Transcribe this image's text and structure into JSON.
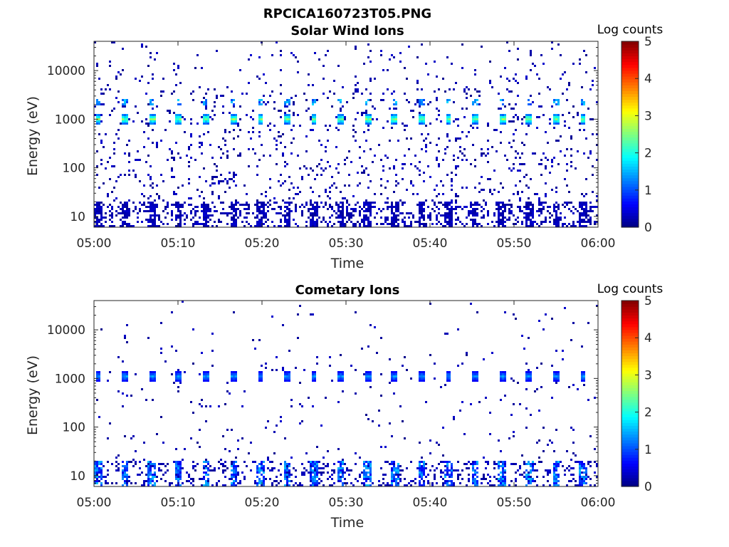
{
  "figure_title": "RPCICA160723T05.PNG",
  "chart_data": [
    {
      "type": "heatmap",
      "title": "Solar Wind Ions",
      "xlabel": "Time",
      "ylabel": "Energy (eV)",
      "x_tick_labels": [
        "05:00",
        "05:10",
        "05:20",
        "05:30",
        "05:40",
        "05:50",
        "06:00"
      ],
      "x_range_minutes": [
        0,
        60
      ],
      "y_scale": "log",
      "y_range_eV": [
        6,
        40000
      ],
      "y_ticks": [
        10,
        100,
        1000,
        10000
      ],
      "y_tick_labels": [
        "10",
        "100",
        "1000",
        "10000"
      ],
      "colorbar_title": "Log counts",
      "colorbar_range": [
        0,
        5
      ],
      "colorbar_tick_labels": [
        "0",
        "1",
        "2",
        "3",
        "4",
        "5"
      ],
      "colormap": "jet",
      "peak_energy_eV": 1000,
      "secondary_peak_eV": 2200,
      "peak_log_counts": 2.8,
      "sweep_times_min": [
        0.5,
        3.7,
        6.9,
        10.1,
        13.3,
        16.6,
        19.8,
        23.0,
        26.2,
        29.4,
        32.6,
        35.8,
        39.0,
        42.2,
        45.4,
        48.6,
        51.8,
        55.0,
        58.2
      ],
      "background_density": 0.07,
      "low_energy_band_eV": [
        6,
        20
      ]
    },
    {
      "type": "heatmap",
      "title": "Cometary Ions",
      "xlabel": "Time",
      "ylabel": "Energy (eV)",
      "x_tick_labels": [
        "05:00",
        "05:10",
        "05:20",
        "05:30",
        "05:40",
        "05:50",
        "06:00"
      ],
      "x_range_minutes": [
        0,
        60
      ],
      "y_scale": "log",
      "y_range_eV": [
        6,
        40000
      ],
      "y_ticks": [
        10,
        100,
        1000,
        10000
      ],
      "y_tick_labels": [
        "10",
        "100",
        "1000",
        "10000"
      ],
      "colorbar_title": "Log counts",
      "colorbar_range": [
        0,
        5
      ],
      "colorbar_tick_labels": [
        "0",
        "1",
        "2",
        "3",
        "4",
        "5"
      ],
      "colormap": "jet",
      "peak_energy_eV": 1100,
      "peak_log_counts": 1.5,
      "sweep_times_min": [
        0.5,
        3.7,
        6.9,
        10.1,
        13.3,
        16.6,
        19.8,
        23.0,
        26.2,
        29.4,
        32.6,
        35.8,
        39.0,
        42.2,
        45.4,
        48.6,
        51.8,
        55.0,
        58.2
      ],
      "background_density": 0.02,
      "low_energy_band_eV": [
        6,
        20
      ],
      "low_energy_log_counts": 1.6
    }
  ]
}
